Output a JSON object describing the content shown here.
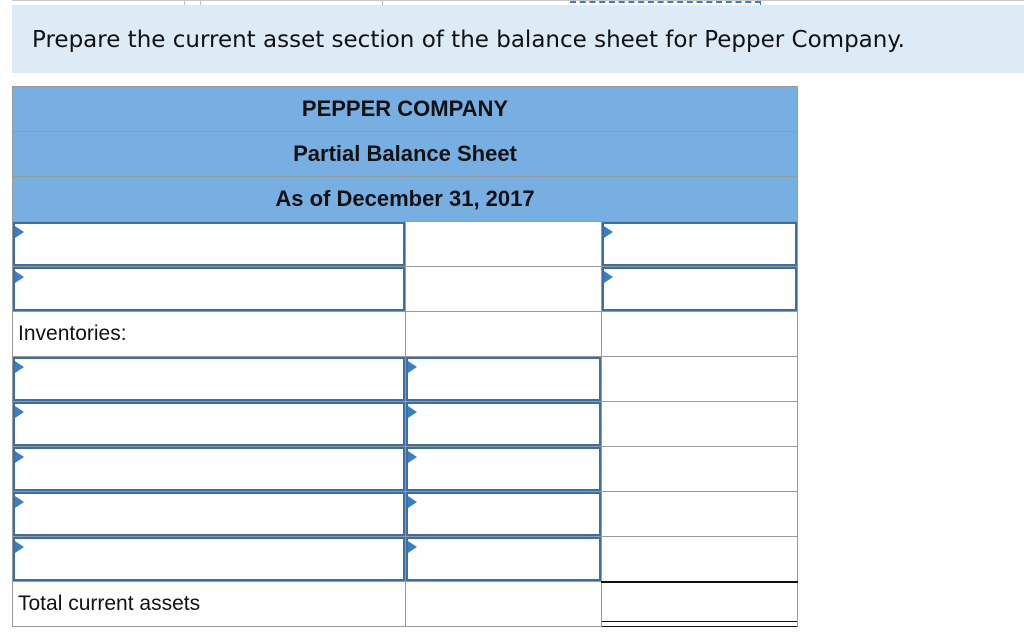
{
  "question": {
    "prompt": "Prepare the current asset section of the balance sheet for Pepper Company."
  },
  "statement": {
    "company": "PEPPER COMPANY",
    "title": "Partial Balance Sheet",
    "date": "As of December 31, 2017"
  },
  "rows": {
    "inventories_label": "Inventories:",
    "total_label": "Total current assets"
  },
  "colors": {
    "header_fill": "#78afe3",
    "prompt_fill": "#ddebf7",
    "input_border": "#3a6ea5",
    "dropdown_marker": "#3a7fc4"
  },
  "icons": {
    "dropdown_marker": "dropdown-marker-icon"
  }
}
